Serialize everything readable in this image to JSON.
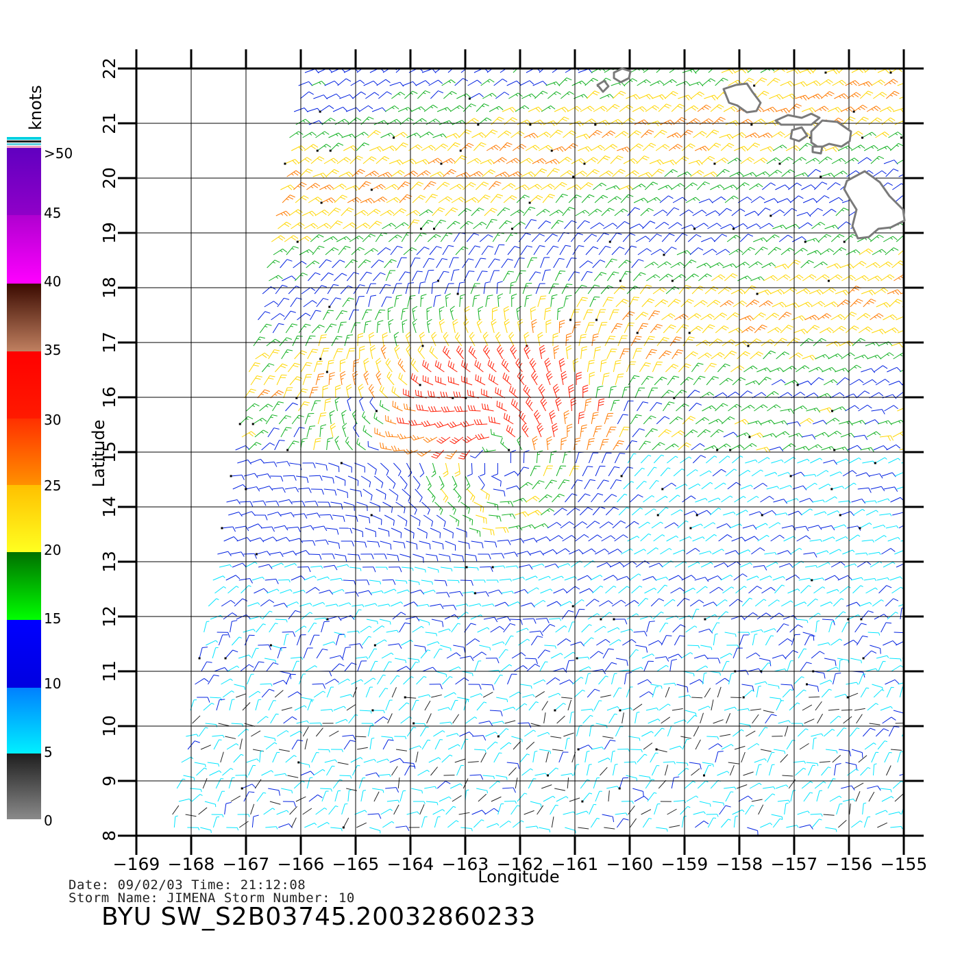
{
  "legend": {
    "unit": "knots",
    "top_label": ">50",
    "labels": [
      "45",
      "40",
      "35",
      "30",
      "25",
      "20",
      "15",
      "10",
      "5",
      "0"
    ],
    "colors": {
      "black": "#222222",
      "cyan": "#00e5ff",
      "blue": "#0020e0",
      "green": "#10b020",
      "yellow": "#ffd600",
      "orange": "#ff7a00",
      "red": "#ff1a00",
      "brown": "#8a3a20",
      "magenta": "#ff00ff",
      "purple": "#7020c0"
    }
  },
  "map": {
    "xlabel": "Longitude",
    "ylabel": "Latitude",
    "lon_ticks": [
      "−169",
      "−168",
      "−167",
      "−166",
      "−165",
      "−164",
      "−163",
      "−162",
      "−161",
      "−160",
      "−159",
      "−158",
      "−157",
      "−156",
      "−155"
    ],
    "lat_ticks": [
      "8",
      "9",
      "10",
      "11",
      "12",
      "13",
      "14",
      "15",
      "16",
      "17",
      "18",
      "19",
      "20",
      "21",
      "22"
    ],
    "lon_range": [
      -169,
      -155
    ],
    "lat_range": [
      8,
      22
    ],
    "storm_center": {
      "lon": -162.4,
      "lat": 14.8
    },
    "land_outline_color": "#7a7a7a"
  },
  "info": {
    "date_line": "Date: 09/02/03   Time: 21:12:08",
    "storm_line": "Storm Name: JIMENA   Storm Number: 10",
    "title": "BYU SW_S2B03745.20032860233"
  }
}
